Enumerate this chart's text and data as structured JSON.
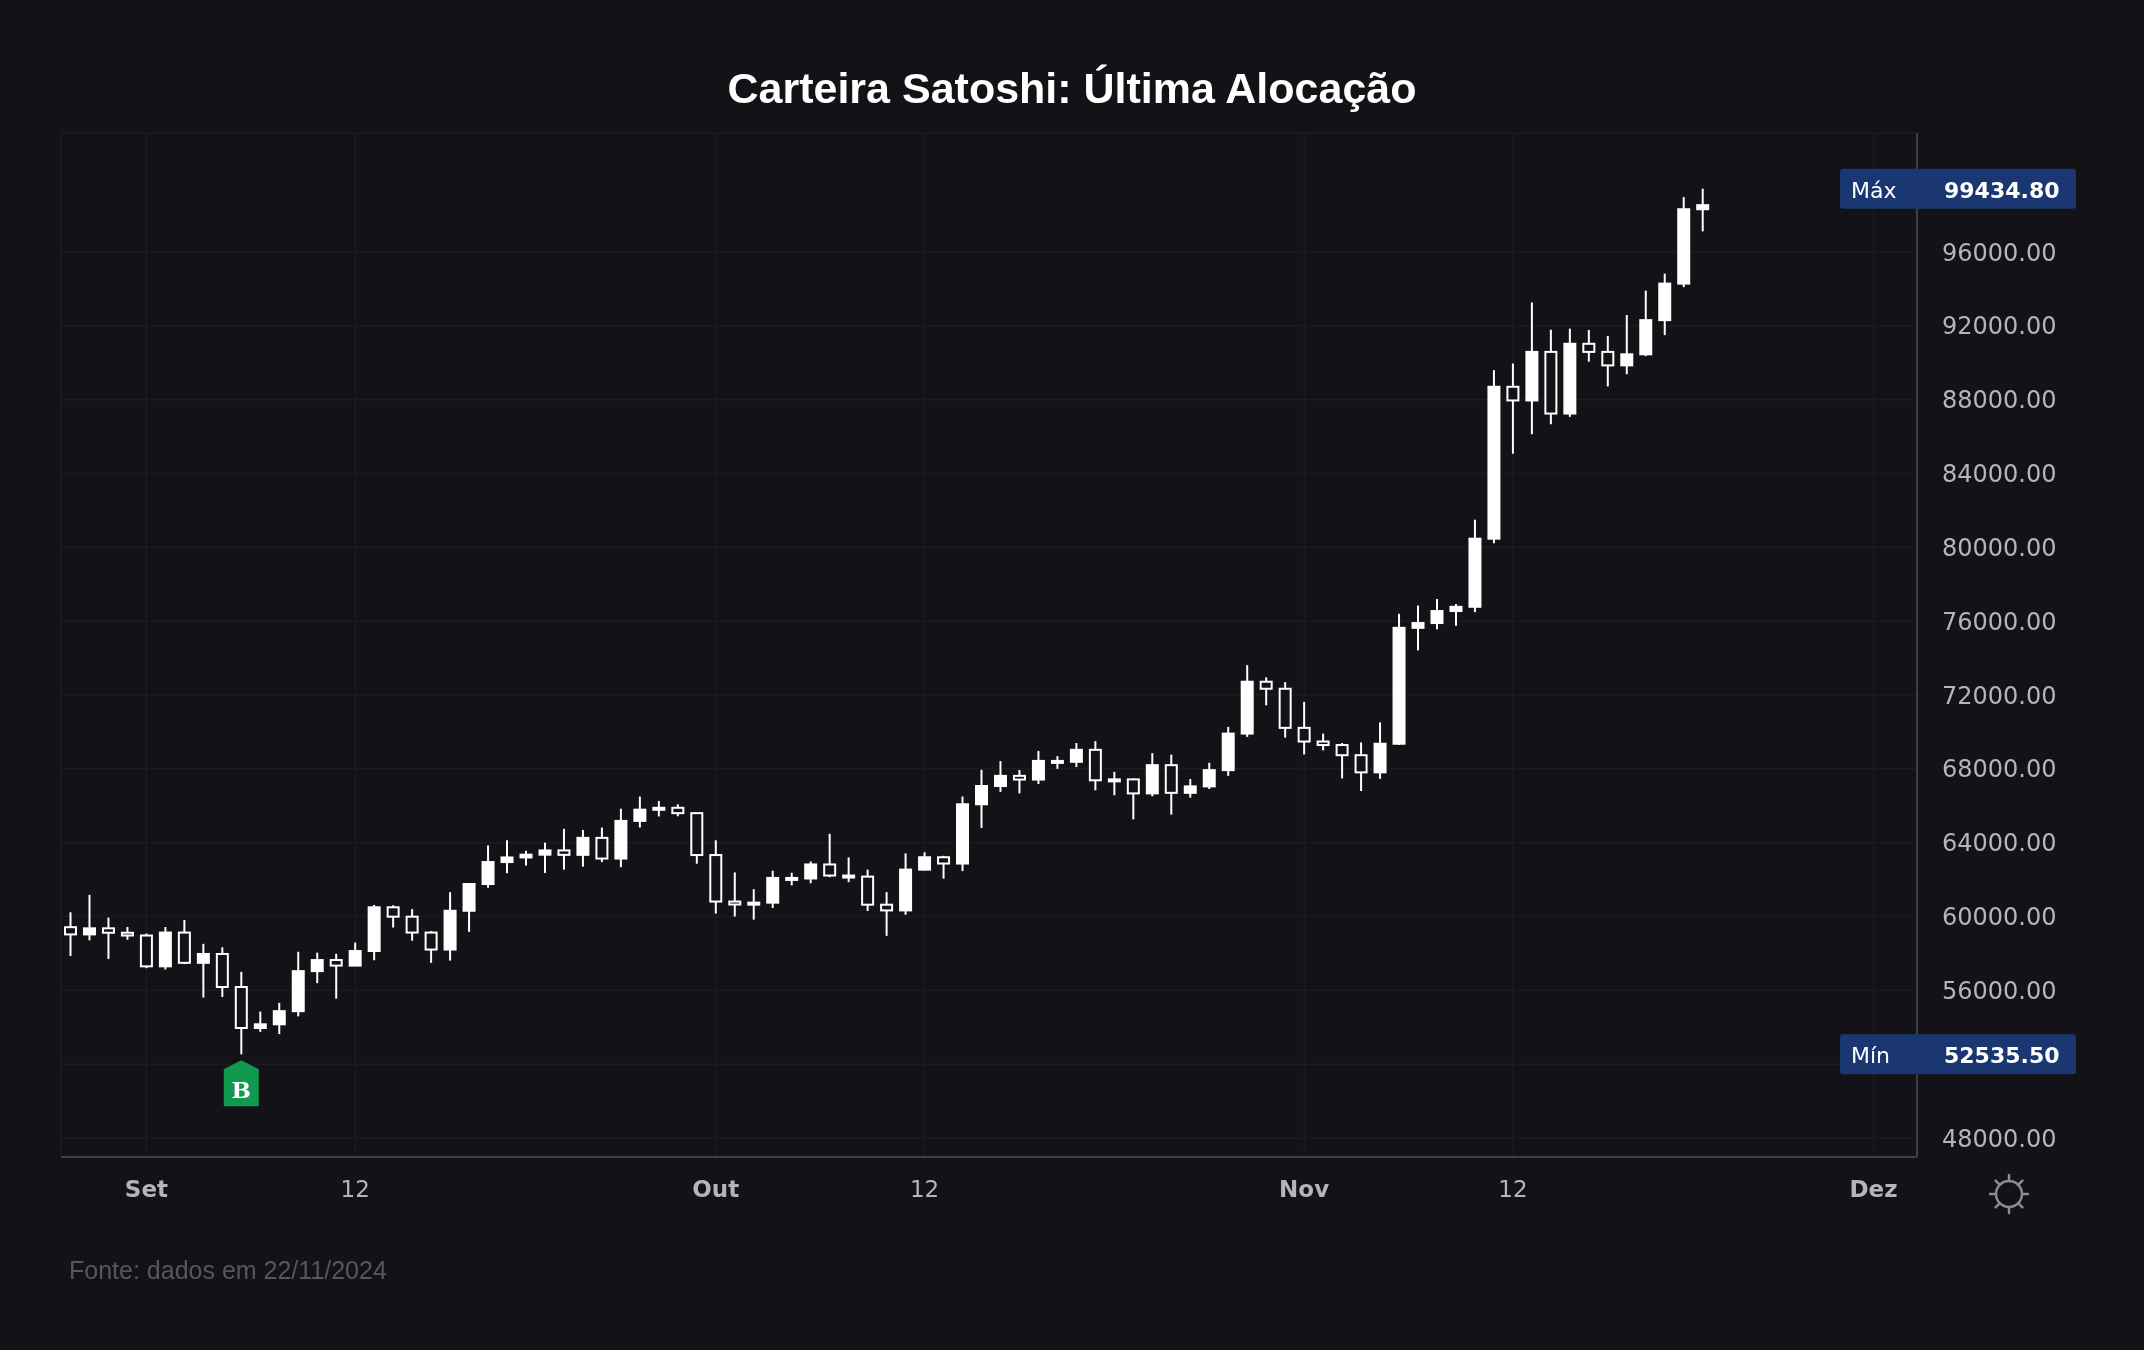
{
  "chart_data": {
    "type": "candlestick",
    "title": "Carteira Satoshi: Última Alocação",
    "color": "#ffffff",
    "x": [
      "2024-08-28",
      "2024-08-29",
      "2024-08-30",
      "2024-08-31",
      "2024-09-01",
      "2024-09-02",
      "2024-09-03",
      "2024-09-04",
      "2024-09-05",
      "2024-09-06",
      "2024-09-07",
      "2024-09-08",
      "2024-09-09",
      "2024-09-10",
      "2024-09-11",
      "2024-09-12",
      "2024-09-13",
      "2024-09-14",
      "2024-09-15",
      "2024-09-16",
      "2024-09-17",
      "2024-09-18",
      "2024-09-19",
      "2024-09-20",
      "2024-09-21",
      "2024-09-22",
      "2024-09-23",
      "2024-09-24",
      "2024-09-25",
      "2024-09-26",
      "2024-09-27",
      "2024-09-28",
      "2024-09-29",
      "2024-09-30",
      "2024-10-01",
      "2024-10-02",
      "2024-10-03",
      "2024-10-04",
      "2024-10-05",
      "2024-10-06",
      "2024-10-07",
      "2024-10-08",
      "2024-10-09",
      "2024-10-10",
      "2024-10-11",
      "2024-10-12",
      "2024-10-13",
      "2024-10-14",
      "2024-10-15",
      "2024-10-16",
      "2024-10-17",
      "2024-10-18",
      "2024-10-19",
      "2024-10-20",
      "2024-10-21",
      "2024-10-22",
      "2024-10-23",
      "2024-10-24",
      "2024-10-25",
      "2024-10-26",
      "2024-10-27",
      "2024-10-28",
      "2024-10-29",
      "2024-10-30",
      "2024-10-31",
      "2024-11-01",
      "2024-11-02",
      "2024-11-03",
      "2024-11-04",
      "2024-11-05",
      "2024-11-06",
      "2024-11-07",
      "2024-11-08",
      "2024-11-09",
      "2024-11-10",
      "2024-11-11",
      "2024-11-12",
      "2024-11-13",
      "2024-11-14",
      "2024-11-15",
      "2024-11-16",
      "2024-11-17",
      "2024-11-18",
      "2024-11-19",
      "2024-11-20",
      "2024-11-21",
      "2024-11-22"
    ],
    "ohlc": [
      [
        59420,
        60230,
        57860,
        59030
      ],
      [
        59030,
        61170,
        58710,
        59360
      ],
      [
        59360,
        59940,
        57700,
        59120
      ],
      [
        59120,
        59430,
        58740,
        58970
      ],
      [
        58970,
        59080,
        57200,
        57300
      ],
      [
        57300,
        59430,
        57130,
        59130
      ],
      [
        59130,
        59810,
        57420,
        57490
      ],
      [
        57490,
        58520,
        55610,
        57970
      ],
      [
        57970,
        58330,
        55640,
        56180
      ],
      [
        56180,
        57000,
        52535.5,
        53960
      ],
      [
        53960,
        54850,
        53750,
        54160
      ],
      [
        54160,
        55320,
        53630,
        54870
      ],
      [
        54870,
        58090,
        54590,
        57040
      ],
      [
        57040,
        58040,
        56390,
        57640
      ],
      [
        57640,
        57980,
        55550,
        57340
      ],
      [
        57340,
        58590,
        57320,
        58130
      ],
      [
        58130,
        60630,
        57630,
        60500
      ],
      [
        60500,
        60610,
        59400,
        59990
      ],
      [
        59990,
        60400,
        58690,
        59130
      ],
      [
        59130,
        59210,
        57490,
        58210
      ],
      [
        58210,
        61320,
        57610,
        60310
      ],
      [
        60310,
        61790,
        59170,
        61760
      ],
      [
        61760,
        63850,
        61560,
        62950
      ],
      [
        62950,
        64130,
        62350,
        63200
      ],
      [
        63200,
        63560,
        62760,
        63350
      ],
      [
        63350,
        64000,
        62360,
        63580
      ],
      [
        63580,
        64750,
        62540,
        63340
      ],
      [
        63340,
        64690,
        62700,
        64260
      ],
      [
        64260,
        64820,
        62950,
        63140
      ],
      [
        63140,
        65840,
        62670,
        65180
      ],
      [
        65180,
        66500,
        64820,
        65790
      ],
      [
        65790,
        66260,
        65420,
        65890
      ],
      [
        65890,
        66080,
        65430,
        65600
      ],
      [
        65600,
        65620,
        62860,
        63330
      ],
      [
        63330,
        64130,
        60160,
        60810
      ],
      [
        60810,
        62390,
        60000,
        60650
      ],
      [
        60650,
        61480,
        59830,
        60750
      ],
      [
        60750,
        62480,
        60460,
        62090
      ],
      [
        62090,
        62370,
        61690,
        62060
      ],
      [
        62060,
        62980,
        61800,
        62820
      ],
      [
        62820,
        64480,
        62130,
        62220
      ],
      [
        62220,
        63200,
        61860,
        62160
      ],
      [
        62160,
        62540,
        60300,
        60640
      ],
      [
        60640,
        61320,
        58950,
        60330
      ],
      [
        60330,
        63420,
        60090,
        62540
      ],
      [
        62540,
        63480,
        62490,
        63210
      ],
      [
        63210,
        63290,
        62050,
        62870
      ],
      [
        62870,
        66500,
        62460,
        66080
      ],
      [
        66080,
        67950,
        64800,
        67070
      ],
      [
        67070,
        68420,
        66750,
        67620
      ],
      [
        67620,
        67940,
        66670,
        67420
      ],
      [
        67420,
        68970,
        67180,
        68430
      ],
      [
        68430,
        68690,
        68000,
        68380
      ],
      [
        68380,
        69400,
        68100,
        69030
      ],
      [
        69030,
        69500,
        66840,
        67380
      ],
      [
        67380,
        67840,
        66570,
        67430
      ],
      [
        67430,
        67470,
        65260,
        66670
      ],
      [
        66670,
        68850,
        66510,
        68200
      ],
      [
        68200,
        68770,
        65520,
        66700
      ],
      [
        66700,
        67450,
        66440,
        67050
      ],
      [
        67050,
        68330,
        66910,
        67930
      ],
      [
        67930,
        70270,
        67620,
        69910
      ],
      [
        69910,
        73620,
        69730,
        72720
      ],
      [
        72720,
        72960,
        71440,
        72340
      ],
      [
        72340,
        72700,
        69690,
        70220
      ],
      [
        70220,
        71630,
        68780,
        69480
      ],
      [
        69480,
        69910,
        69000,
        69290
      ],
      [
        69290,
        69400,
        67480,
        68740
      ],
      [
        68740,
        69430,
        66800,
        67810
      ],
      [
        67810,
        70520,
        67460,
        69360
      ],
      [
        69360,
        76400,
        69300,
        75640
      ],
      [
        75640,
        76850,
        74420,
        75900
      ],
      [
        75900,
        77200,
        75560,
        76550
      ],
      [
        76550,
        76930,
        75750,
        76780
      ],
      [
        76780,
        81500,
        76490,
        80470
      ],
      [
        80470,
        89600,
        80220,
        88700
      ],
      [
        88700,
        89960,
        85070,
        87960
      ],
      [
        87960,
        93270,
        86130,
        90590
      ],
      [
        90590,
        91790,
        86670,
        87250
      ],
      [
        87250,
        91850,
        87070,
        91030
      ],
      [
        91030,
        91780,
        90060,
        90590
      ],
      [
        90590,
        91450,
        88720,
        89860
      ],
      [
        89860,
        92590,
        89380,
        90460
      ],
      [
        90460,
        93910,
        90360,
        92310
      ],
      [
        92310,
        94830,
        91500,
        94290
      ],
      [
        94290,
        98980,
        94100,
        98320
      ],
      [
        98320,
        99434.8,
        97120,
        98540
      ]
    ],
    "xlim": [
      "2024-08-27T12:00",
      "2024-12-03T07:00"
    ],
    "xticks": [
      {
        "value": "2024-09-01",
        "label": "Set"
      },
      {
        "value": "2024-09-12",
        "label": "12"
      },
      {
        "value": "2024-10-01",
        "label": "Out"
      },
      {
        "value": "2024-10-12",
        "label": "12"
      },
      {
        "value": "2024-11-01",
        "label": "Nov"
      },
      {
        "value": "2024-11-12",
        "label": "12"
      },
      {
        "value": "2024-12-01",
        "label": "Dez"
      }
    ],
    "ylim": [
      46970,
      102450
    ],
    "yticks": [
      {
        "value": 48000,
        "label": "48000.00"
      },
      {
        "value": 52000,
        "label": null
      },
      {
        "value": 56000,
        "label": "56000.00"
      },
      {
        "value": 60000,
        "label": "60000.00"
      },
      {
        "value": 64000,
        "label": "64000.00"
      },
      {
        "value": 68000,
        "label": "68000.00"
      },
      {
        "value": 72000,
        "label": "72000.00"
      },
      {
        "value": 76000,
        "label": "76000.00"
      },
      {
        "value": 80000,
        "label": "80000.00"
      },
      {
        "value": 84000,
        "label": "84000.00"
      },
      {
        "value": 88000,
        "label": "88000.00"
      },
      {
        "value": 92000,
        "label": "92000.00"
      },
      {
        "value": 96000,
        "label": "96000.00"
      }
    ],
    "grid": true,
    "annotations": [
      {
        "text": "B",
        "x": "2024-09-06",
        "y": 52535.5
      },
      "Máx 99434.80",
      "Mín 52535.50",
      "Fonte: dados em 22/11/2024"
    ]
  }
}
